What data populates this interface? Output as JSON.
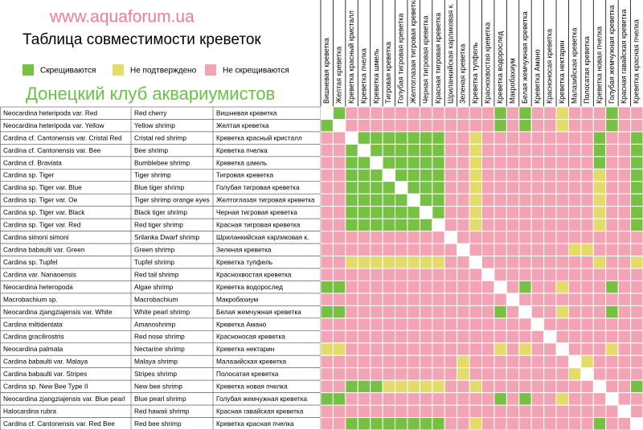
{
  "header": {
    "site": "www.aquaforum.ua",
    "title": "Таблица совместимости креветок",
    "club": "Донецкий клуб аквариумистов"
  },
  "legend": [
    {
      "code": "g",
      "label": "Скрещиваются",
      "color": "#76c043"
    },
    {
      "code": "y",
      "label": "Не подтверждено",
      "color": "#e3dc6b"
    },
    {
      "code": "p",
      "label": "Не скрещиваются",
      "color": "#f2a3b4"
    }
  ],
  "diagonal_color": "#ffffff",
  "columns": [
    "Вишневая креветка",
    "Желтая креветка",
    "Креветка красный кристалл",
    "Креветка пчелка",
    "Креветка шмель",
    "Тигровая креветка",
    "Голубая тигровая креветка",
    "Желтоглазая тигровая креветка",
    "Черная тигровая креветка",
    "Красная тигровая креветка",
    "Шриланкийская карликовая к.",
    "Зеленая креветка",
    "Креветка тупфель",
    "Краснохвостая креветка",
    "Креветка водорослед",
    "Макробахиум",
    "Белая жемчужная креветка",
    "Креветка Амано",
    "Красноносая креветка",
    "Креветка нектарин",
    "Малазийская креветка",
    "Полосатая креветка",
    "Креветка новая пчелка",
    "Голубая жемчужная креветка",
    "Красная гавайская креветка",
    "Креветка красная пчелка"
  ],
  "rows": [
    {
      "latin": "Neocardina heteripoda var. Red",
      "english": "Red cherry",
      "russian": "Вишневая креветка"
    },
    {
      "latin": "Neocardina heteripoda var. Yellow",
      "english": "Yellow shrimp",
      "russian": "Желтая креветка"
    },
    {
      "latin": "Cardina cf. Cantonensis var. Cristal Red",
      "english": "Cristal red shrimp",
      "russian": "Креветка красный кристалл"
    },
    {
      "latin": "Cardina cf. Cantonensis var. Bee",
      "english": "Bee shrimp",
      "russian": "Креветка пчелка"
    },
    {
      "latin": "Cardina cf. Braviata",
      "english": "Bumblebee shrimp",
      "russian": "Креветка шмель"
    },
    {
      "latin": "Cardina sp. Tiger",
      "english": "Tiger shrimp",
      "russian": "Тигровая креветка"
    },
    {
      "latin": "Cardina sp. Tiger var. Blue",
      "english": "Blue tiger shrimp",
      "russian": "Голубая тигровая креветка"
    },
    {
      "latin": "Cardina sp. Tiger var. Oe",
      "english": "Tiger shrimp orange eyes",
      "russian": "Желтоглазая тигровая креветка"
    },
    {
      "latin": "Cardina sp. Tiger var. Black",
      "english": "Black tiger shrimp",
      "russian": "Черная тигровая креветка"
    },
    {
      "latin": "Cardina sp. Tiger var. Red",
      "english": "Red tiger shrimp",
      "russian": "Красная тигровая креветка"
    },
    {
      "latin": "Cardina simoni simoni",
      "english": "Srilanka Dwarf shrimp",
      "russian": "Шриланкийская карликовая к."
    },
    {
      "latin": "Cardina babaulti var. Green",
      "english": "Green shrimp",
      "russian": "Зеленая креветка"
    },
    {
      "latin": "Cardina sp. Tupfel",
      "english": "Tupfel shrimp",
      "russian": "Креветка тупфель"
    },
    {
      "latin": "Cardina var. Nanaoensis",
      "english": "Red tail shrimp",
      "russian": "Краснохвостая креветка"
    },
    {
      "latin": "Neocardina heteropoda",
      "english": "Algae shrimp",
      "russian": "Креветка водорослед"
    },
    {
      "latin": "Macrobachium sp.",
      "english": "Macrobachium",
      "russian": "Макробахиум"
    },
    {
      "latin": "Neocardina zjangziajensis var. White",
      "english": "White pearl shrimp",
      "russian": "Белая жемчужная креветка"
    },
    {
      "latin": "Cardina miltidentata",
      "english": "Amanoshrimp",
      "russian": "Креветка Амано"
    },
    {
      "latin": "Cardina gracilirostris",
      "english": "Red nose shrimp",
      "russian": "Красноносая креветка"
    },
    {
      "latin": "Neocardina palmata",
      "english": "Nectarine shrimp",
      "russian": "Креветка нектарин"
    },
    {
      "latin": "Cardina babaulti var. Malaya",
      "english": "Malaya shrimp",
      "russian": "Малазийская креветка"
    },
    {
      "latin": "Cardina babaulti var. Stripes",
      "english": "Stripes shrimp",
      "russian": "Полосатая креветка"
    },
    {
      "latin": "Cardina sp. New Bee Type II",
      "english": "New bee shrimp",
      "russian": "Креветка новая пчелка"
    },
    {
      "latin": "Neocardina zjangziajensis var. Blue pearl",
      "english": "Blue pearl shrimp",
      "russian": "Голубая жемчужная креветка"
    },
    {
      "latin": "Halocardina rubra",
      "english": "Red hawaii shrimp",
      "russian": "Красная гавайская креветка"
    },
    {
      "latin": "Cardina cf. Cantonensis var. Red Bee",
      "english": "Red bee shrimp",
      "russian": "Креветка красная пчелка"
    }
  ],
  "matrix": [
    "wgppppppppppppgpgppypppgpp",
    "gwppppppppppppgpgppypppgpp",
    "ppwgggggggppypppppppppgppg",
    "ppgwggggggppypppppppppgppg",
    "ppggwgggggppypppppppppgppg",
    "ppgggwggggppypppppppppyppg",
    "ppggggwgggppypppppppppyppg",
    "ppgggggwggppypppppppppyppg",
    "ppggggggwgppypppppppppyppg",
    "ppgggggggwppypppppppppyppg",
    "ppppppppppwppppppppppppppp",
    "pppppppppppwppppppppyypppp",
    "ppyyyyyyyyppwpppppppppyppy",
    "pppppppppppppwpppppppppppp",
    "ggppppppppppppwpgppypppgpp",
    "pppppppppppppppwpppppppppp",
    "ggppppppppppppgpwppypppgpp",
    "pppppppppppppppppwpppppppp",
    "ppppppppppppppppppwppppppp",
    "yyppppppppppppypyppwpppypp",
    "pppppppppppyppppppppwypppp",
    "pppppppppppyppppppppywpppp",
    "ppgggyyyyyppypppppppppwppg",
    "ggppppppppppppgpgppypppwpp",
    "ppppppppppppppppppppppppwp",
    "ppggggggggppypppppppppgppw"
  ]
}
